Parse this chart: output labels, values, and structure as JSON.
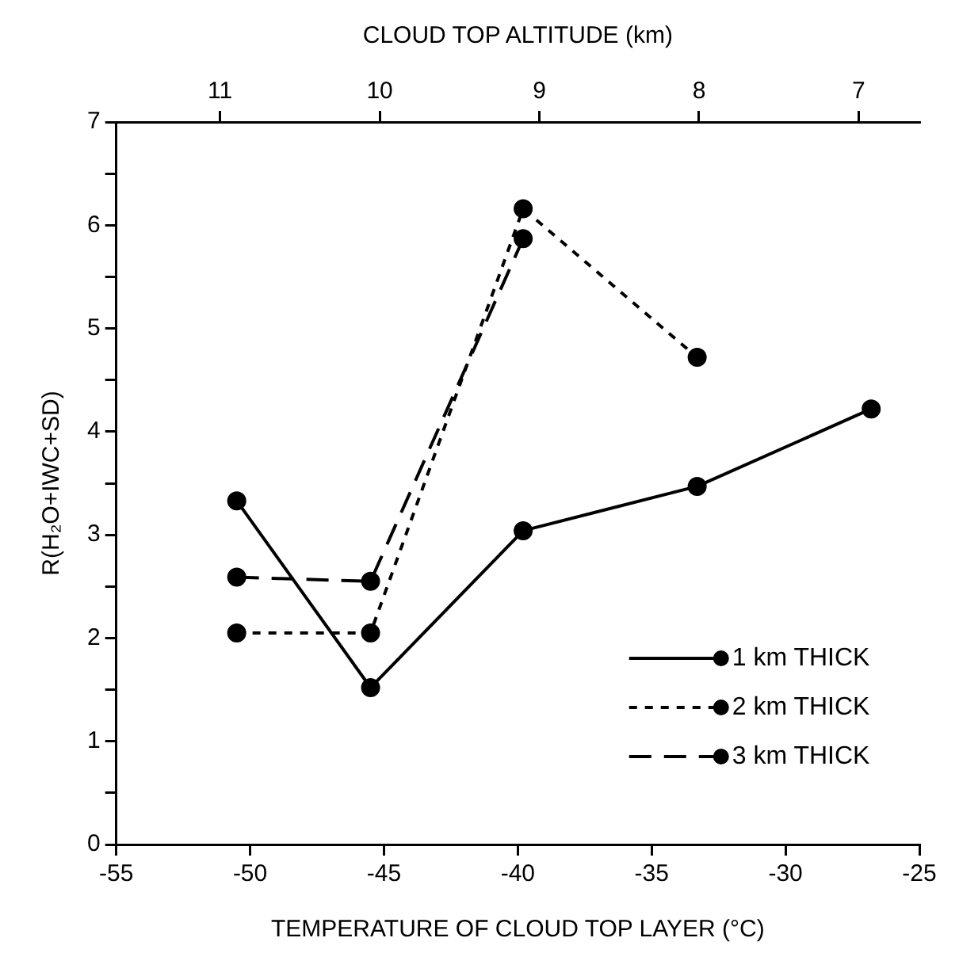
{
  "chart_data": {
    "type": "line",
    "xlabel": "TEMPERATURE OF CLOUD TOP LAYER (°C)",
    "ylabel": "R(H₂O+IWC+SD)",
    "x2label": "CLOUD TOP ALTITUDE (km)",
    "xlim": [
      -55,
      -25
    ],
    "xticks": [
      -55,
      -50,
      -45,
      -40,
      -35,
      -30,
      -25
    ],
    "x2lim": [
      11.65,
      6.62
    ],
    "x2ticks": [
      11,
      10,
      9,
      8,
      7
    ],
    "ylim": [
      0,
      7
    ],
    "yticks": [
      0,
      {
        "value": 0.5,
        "label": null
      },
      1,
      {
        "value": 1.5,
        "label": null
      },
      2,
      {
        "value": 2.5,
        "label": null
      },
      3,
      {
        "value": 3.5,
        "label": null
      },
      4,
      {
        "value": 4.5,
        "label": null
      },
      5,
      {
        "value": 5.5,
        "label": null
      },
      6,
      {
        "value": 6.5,
        "label": null
      },
      7
    ],
    "grid": false,
    "legend": "bottom right",
    "marker": "circle",
    "series": [
      {
        "name": "1 km THICK",
        "color": "#000000",
        "line_style": "solid",
        "x": [
          -50.5,
          -45.5,
          -39.8,
          -33.3,
          -26.8
        ],
        "values": [
          3.33,
          1.52,
          3.04,
          3.47,
          4.22
        ]
      },
      {
        "name": "2 km THICK",
        "color": "#000000",
        "line_style": "dotted",
        "x": [
          -50.5,
          -45.5,
          -39.8,
          -33.3
        ],
        "values": [
          2.05,
          2.05,
          6.16,
          4.72
        ]
      },
      {
        "name": "3 km THICK",
        "color": "#000000",
        "line_style": "dashed",
        "x": [
          -50.5,
          -45.5,
          -39.8
        ],
        "values": [
          2.59,
          2.55,
          5.87
        ]
      }
    ]
  }
}
